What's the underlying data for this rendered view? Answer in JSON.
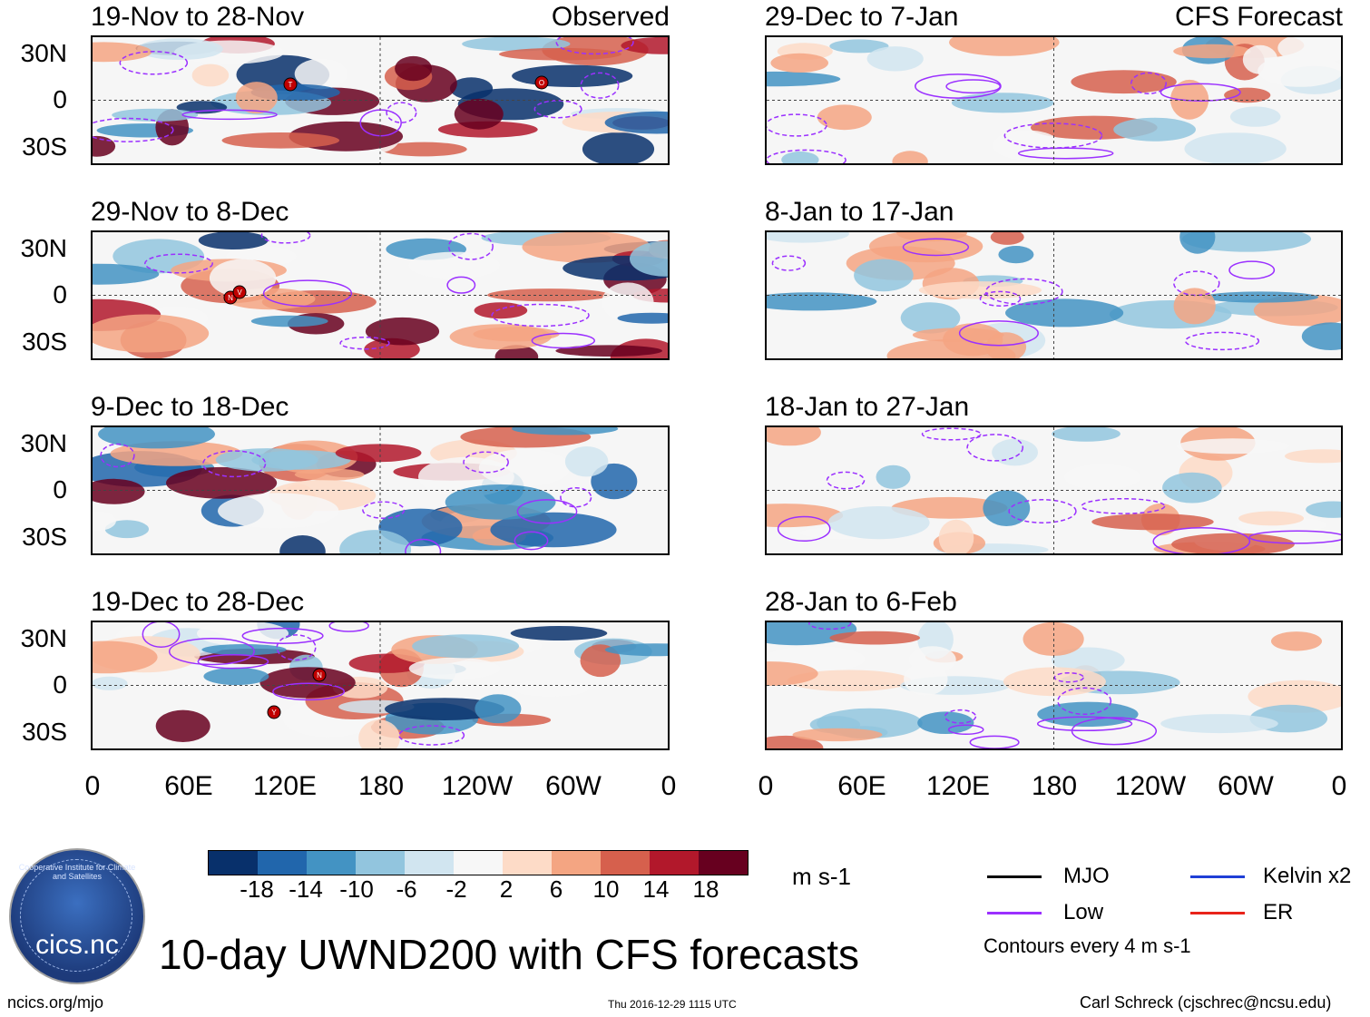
{
  "panels": [
    {
      "title": "19-Nov to 28-Nov",
      "label": "Observed"
    },
    {
      "title": "29-Nov to 8-Dec",
      "label": ""
    },
    {
      "title": "9-Dec to 18-Dec",
      "label": ""
    },
    {
      "title": "19-Dec to 28-Dec",
      "label": ""
    },
    {
      "title": "29-Dec to 7-Jan",
      "label": "CFS Forecast"
    },
    {
      "title": "8-Jan to 17-Jan",
      "label": ""
    },
    {
      "title": "18-Jan to 27-Jan",
      "label": ""
    },
    {
      "title": "28-Jan to 6-Feb",
      "label": ""
    }
  ],
  "lat_ticks": [
    "30N",
    "0",
    "30S"
  ],
  "lon_ticks": [
    "0",
    "60E",
    "120E",
    "180",
    "120W",
    "60W",
    "0"
  ],
  "colorbar": {
    "colors": [
      "#08306b",
      "#2166ac",
      "#4393c3",
      "#92c5de",
      "#d1e5f0",
      "#f7f7f7",
      "#fddbc7",
      "#f4a582",
      "#d6604d",
      "#b2182b",
      "#67001f"
    ],
    "ticks": [
      "-18",
      "-14",
      "-10",
      "-6",
      "-2",
      "2",
      "6",
      "10",
      "14",
      "18"
    ],
    "units": "m s-1"
  },
  "legend": {
    "mjo": "MJO",
    "low": "Low",
    "kelvin": "Kelvin x2",
    "er": "ER",
    "mjo_color": "#000000",
    "low_color": "#9b30ff",
    "kelvin_color": "#1f3fd6",
    "er_color": "#e8231a",
    "contours": "Contours every 4 m s-1"
  },
  "title": "10-day UWND200 with CFS forecasts",
  "footer": {
    "left": "ncics.org/mjo",
    "center": "Thu 2016-12-29 1115 UTC",
    "right": "Carl Schreck (cjschrec@ncsu.edu)"
  },
  "logo": {
    "text": "cics.nc",
    "arc": "Cooperative Institute for Climate and Satellites"
  },
  "storm_markers": [
    {
      "panel": 0,
      "letter": "T"
    },
    {
      "panel": 0,
      "letter": "O"
    },
    {
      "panel": 1,
      "letter": "N"
    },
    {
      "panel": 1,
      "letter": "V"
    },
    {
      "panel": 3,
      "letter": "N"
    },
    {
      "panel": 3,
      "letter": "Y"
    }
  ]
}
